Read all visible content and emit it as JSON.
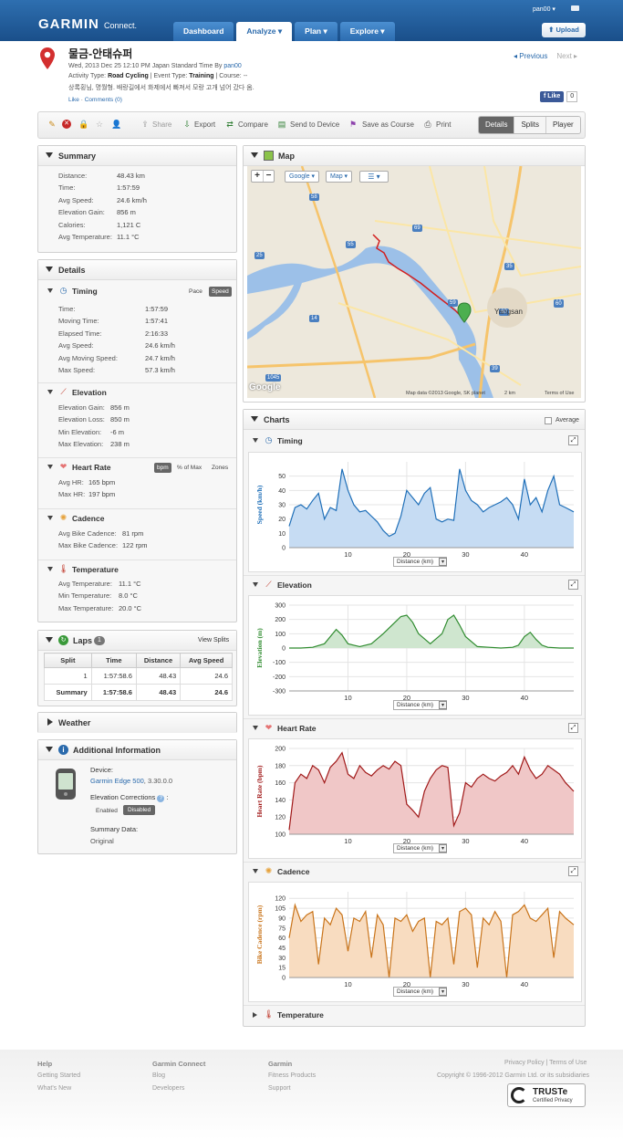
{
  "header": {
    "brand": "GARMIN",
    "brand_sub": "Connect.",
    "nav": [
      {
        "label": "Dashboard"
      },
      {
        "label": "Analyze ▾"
      },
      {
        "label": "Plan ▾"
      },
      {
        "label": "Explore ▾"
      }
    ],
    "user": "pan00 ▾",
    "upload": "Upload"
  },
  "activity": {
    "title": "물금-안태슈퍼",
    "date_prefix": "Wed, 2013 Dec 25 12:10 PM Japan Standard Time By ",
    "author": "pan00",
    "type_line": {
      "activity_label": "Activity Type: ",
      "activity": "Road Cycling",
      "event_label": " | Event Type: ",
      "event": "Training",
      "course_label": " | Course: --"
    },
    "description": "상록횡님, 명월형. 배랑길에서 화제에서 빠져서 모랑 고개 넘어 갔다 옴.",
    "like_link": "Like",
    "comments_link": "Comments (0)",
    "prev": "Previous",
    "next": "Next",
    "fb_like": "Like",
    "fb_count": "0"
  },
  "toolbar": {
    "share": "Share",
    "export": "Export",
    "compare": "Compare",
    "send": "Send to Device",
    "save_course": "Save as Course",
    "print": "Print",
    "views": [
      "Details",
      "Splits",
      "Player"
    ]
  },
  "summary": {
    "title": "Summary",
    "rows": [
      {
        "label": "Distance:",
        "value": "48.43 km"
      },
      {
        "label": "Time:",
        "value": "1:57:59"
      },
      {
        "label": "Avg Speed:",
        "value": "24.6 km/h"
      },
      {
        "label": "Elevation Gain:",
        "value": "856 m"
      },
      {
        "label": "Calories:",
        "value": "1,121 C"
      },
      {
        "label": "Avg Temperature:",
        "value": "11.1 °C"
      }
    ]
  },
  "details": {
    "title": "Details",
    "timing": {
      "title": "Timing",
      "pace": "Pace",
      "speed": "Speed",
      "rows": [
        {
          "label": "Time:",
          "value": "1:57:59"
        },
        {
          "label": "Moving Time:",
          "value": "1:57:41"
        },
        {
          "label": "Elapsed Time:",
          "value": "2:16:33"
        },
        {
          "label": "Avg Speed:",
          "value": "24.6 km/h"
        },
        {
          "label": "Avg Moving Speed:",
          "value": "24.7 km/h"
        },
        {
          "label": "Max Speed:",
          "value": "57.3 km/h"
        }
      ]
    },
    "elevation": {
      "title": "Elevation",
      "rows": [
        {
          "label": "Elevation Gain:",
          "value": "856 m"
        },
        {
          "label": "Elevation Loss:",
          "value": "850 m"
        },
        {
          "label": "Min Elevation:",
          "value": "-6 m"
        },
        {
          "label": "Max Elevation:",
          "value": "238 m"
        }
      ]
    },
    "heart_rate": {
      "title": "Heart Rate",
      "bpm": "bpm",
      "pct": "% of Max",
      "zones": "Zones",
      "rows": [
        {
          "label": "Avg HR:",
          "value": "165 bpm"
        },
        {
          "label": "Max HR:",
          "value": "197 bpm"
        }
      ]
    },
    "cadence": {
      "title": "Cadence",
      "rows": [
        {
          "label": "Avg Bike Cadence:",
          "value": "81 rpm"
        },
        {
          "label": "Max Bike Cadence:",
          "value": "122 rpm"
        }
      ]
    },
    "temperature": {
      "title": "Temperature",
      "rows": [
        {
          "label": "Avg Temperature:",
          "value": "11.1 °C"
        },
        {
          "label": "Min Temperature:",
          "value": "8.0 °C"
        },
        {
          "label": "Max Temperature:",
          "value": "20.0 °C"
        }
      ]
    }
  },
  "laps": {
    "title": "Laps",
    "count": "1",
    "view_splits": "View Splits",
    "headers": [
      "Split",
      "Time",
      "Distance",
      "Avg Speed"
    ],
    "rows": [
      [
        "1",
        "1:57:58.6",
        "48.43",
        "24.6"
      ],
      [
        "Summary",
        "1:57:58.6",
        "48.43",
        "24.6"
      ]
    ]
  },
  "weather": {
    "title": "Weather"
  },
  "additional": {
    "title": "Additional Information",
    "device_label": "Device:",
    "device_name": "Garmin Edge 500",
    "device_version": ", 3.30.0.0",
    "elev_corr_label": "Elevation Corrections",
    "enabled": "Enabled",
    "disabled": "Disabled",
    "summary_label": "Summary Data:",
    "summary_value": "Original"
  },
  "map": {
    "title": "Map",
    "google_btn": "Google ▾",
    "map_btn": "Map ▾",
    "labels": {
      "yangsan": "Yangsan",
      "copyright": "Map data ©2013 Google, SK planet",
      "scale": "2 km",
      "terms": "Terms of Use",
      "google": "Google"
    },
    "road_numbers": [
      "25",
      "58",
      "55",
      "69",
      "35",
      "60",
      "14",
      "1045",
      "59",
      "39",
      "60",
      "60"
    ]
  },
  "charts": {
    "title": "Charts",
    "average": "Average",
    "distance_label": "Distance (km)",
    "temperature_title": "Temperature",
    "colors": {
      "speed": "#1f6fb8",
      "elevation": "#2e8b2e",
      "hr": "#a01818",
      "cadence": "#c9741a"
    },
    "chart_data": [
      {
        "type": "area",
        "title": "Timing",
        "xlabel": "Distance (km)",
        "ylabel": "Speed (km/h)",
        "xlim": [
          0,
          48.4
        ],
        "ylim": [
          0,
          60
        ],
        "xticks": [
          10,
          20,
          30,
          40
        ],
        "yticks": [
          0,
          10,
          20,
          30,
          40,
          50
        ],
        "x": [
          0,
          1,
          2,
          3,
          4,
          5,
          6,
          7,
          8,
          9,
          10,
          11,
          12,
          13,
          14,
          15,
          16,
          17,
          18,
          19,
          20,
          21,
          22,
          23,
          24,
          25,
          26,
          27,
          28,
          29,
          30,
          31,
          32,
          33,
          34,
          35,
          36,
          37,
          38,
          39,
          40,
          41,
          42,
          43,
          44,
          45,
          46,
          47,
          48.4
        ],
        "y": [
          15,
          28,
          30,
          27,
          33,
          38,
          20,
          28,
          26,
          55,
          40,
          30,
          25,
          26,
          22,
          18,
          12,
          8,
          10,
          22,
          40,
          35,
          30,
          38,
          42,
          20,
          18,
          20,
          19,
          55,
          40,
          33,
          30,
          25,
          28,
          30,
          32,
          35,
          30,
          20,
          48,
          30,
          35,
          25,
          40,
          50,
          30,
          28,
          25
        ]
      },
      {
        "type": "area",
        "title": "Elevation",
        "xlabel": "Distance (km)",
        "ylabel": "Elevation (m)",
        "xlim": [
          0,
          48.4
        ],
        "ylim": [
          -300,
          300
        ],
        "xticks": [
          10,
          20,
          30,
          40
        ],
        "yticks": [
          -300,
          -200,
          -100,
          0,
          100,
          200,
          300
        ],
        "x": [
          0,
          2,
          4,
          6,
          7,
          8,
          9,
          10,
          11,
          12,
          14,
          16,
          18,
          19,
          20,
          21,
          22,
          24,
          26,
          27,
          28,
          29,
          30,
          32,
          34,
          36,
          38,
          39,
          40,
          41,
          42,
          43,
          44,
          46,
          48.4
        ],
        "y": [
          0,
          0,
          5,
          30,
          80,
          130,
          90,
          30,
          20,
          10,
          30,
          100,
          180,
          220,
          230,
          180,
          100,
          30,
          100,
          200,
          230,
          160,
          80,
          10,
          5,
          0,
          5,
          20,
          80,
          110,
          60,
          20,
          5,
          0,
          0
        ]
      },
      {
        "type": "area",
        "title": "Heart Rate",
        "xlabel": "Distance (km)",
        "ylabel": "Heart Rate (bpm)",
        "xlim": [
          0,
          48.4
        ],
        "ylim": [
          100,
          200
        ],
        "xticks": [
          10,
          20,
          30,
          40
        ],
        "yticks": [
          100,
          120,
          140,
          160,
          180,
          200
        ],
        "x": [
          0,
          1,
          2,
          3,
          4,
          5,
          6,
          7,
          8,
          9,
          10,
          11,
          12,
          13,
          14,
          15,
          16,
          17,
          18,
          19,
          20,
          21,
          22,
          23,
          24,
          25,
          26,
          27,
          28,
          29,
          30,
          31,
          32,
          33,
          34,
          35,
          36,
          37,
          38,
          39,
          40,
          41,
          42,
          43,
          44,
          45,
          46,
          47,
          48.4
        ],
        "y": [
          105,
          160,
          170,
          165,
          180,
          175,
          160,
          178,
          185,
          195,
          170,
          165,
          180,
          172,
          168,
          175,
          180,
          176,
          185,
          180,
          135,
          128,
          120,
          150,
          165,
          175,
          180,
          178,
          110,
          125,
          160,
          155,
          165,
          170,
          165,
          162,
          168,
          172,
          180,
          170,
          190,
          175,
          165,
          170,
          180,
          175,
          170,
          160,
          150
        ]
      },
      {
        "type": "area",
        "title": "Cadence",
        "xlabel": "Distance (km)",
        "ylabel": "Bike Cadence (rpm)",
        "xlim": [
          0,
          48.4
        ],
        "ylim": [
          0,
          130
        ],
        "xticks": [
          10,
          20,
          30,
          40
        ],
        "yticks": [
          0,
          15,
          30,
          45,
          60,
          75,
          90,
          105,
          120
        ],
        "x": [
          0,
          1,
          2,
          3,
          4,
          5,
          6,
          7,
          8,
          9,
          10,
          11,
          12,
          13,
          14,
          15,
          16,
          17,
          18,
          19,
          20,
          21,
          22,
          23,
          24,
          25,
          26,
          27,
          28,
          29,
          30,
          31,
          32,
          33,
          34,
          35,
          36,
          37,
          38,
          39,
          40,
          41,
          42,
          43,
          44,
          45,
          46,
          47,
          48.4
        ],
        "y": [
          60,
          110,
          85,
          95,
          100,
          20,
          90,
          80,
          105,
          95,
          40,
          90,
          85,
          100,
          30,
          95,
          80,
          0,
          90,
          85,
          95,
          70,
          85,
          90,
          0,
          85,
          80,
          90,
          20,
          100,
          105,
          95,
          15,
          90,
          80,
          100,
          85,
          0,
          95,
          100,
          110,
          90,
          85,
          95,
          105,
          30,
          100,
          90,
          80
        ]
      }
    ]
  },
  "footer": {
    "help": "Help",
    "getting_started": "Getting Started",
    "whats_new": "What's New",
    "gc": "Garmin Connect",
    "blog": "Blog",
    "developers": "Developers",
    "garmin": "Garmin",
    "fitness": "Fitness Products",
    "support": "Support",
    "privacy": "Privacy Policy | Terms of Use",
    "copyright": "Copyright © 1996-2012 Garmin Ltd. or its subsidiaries",
    "truste": "TRUSTe",
    "truste_sub": "Certified Privacy"
  }
}
